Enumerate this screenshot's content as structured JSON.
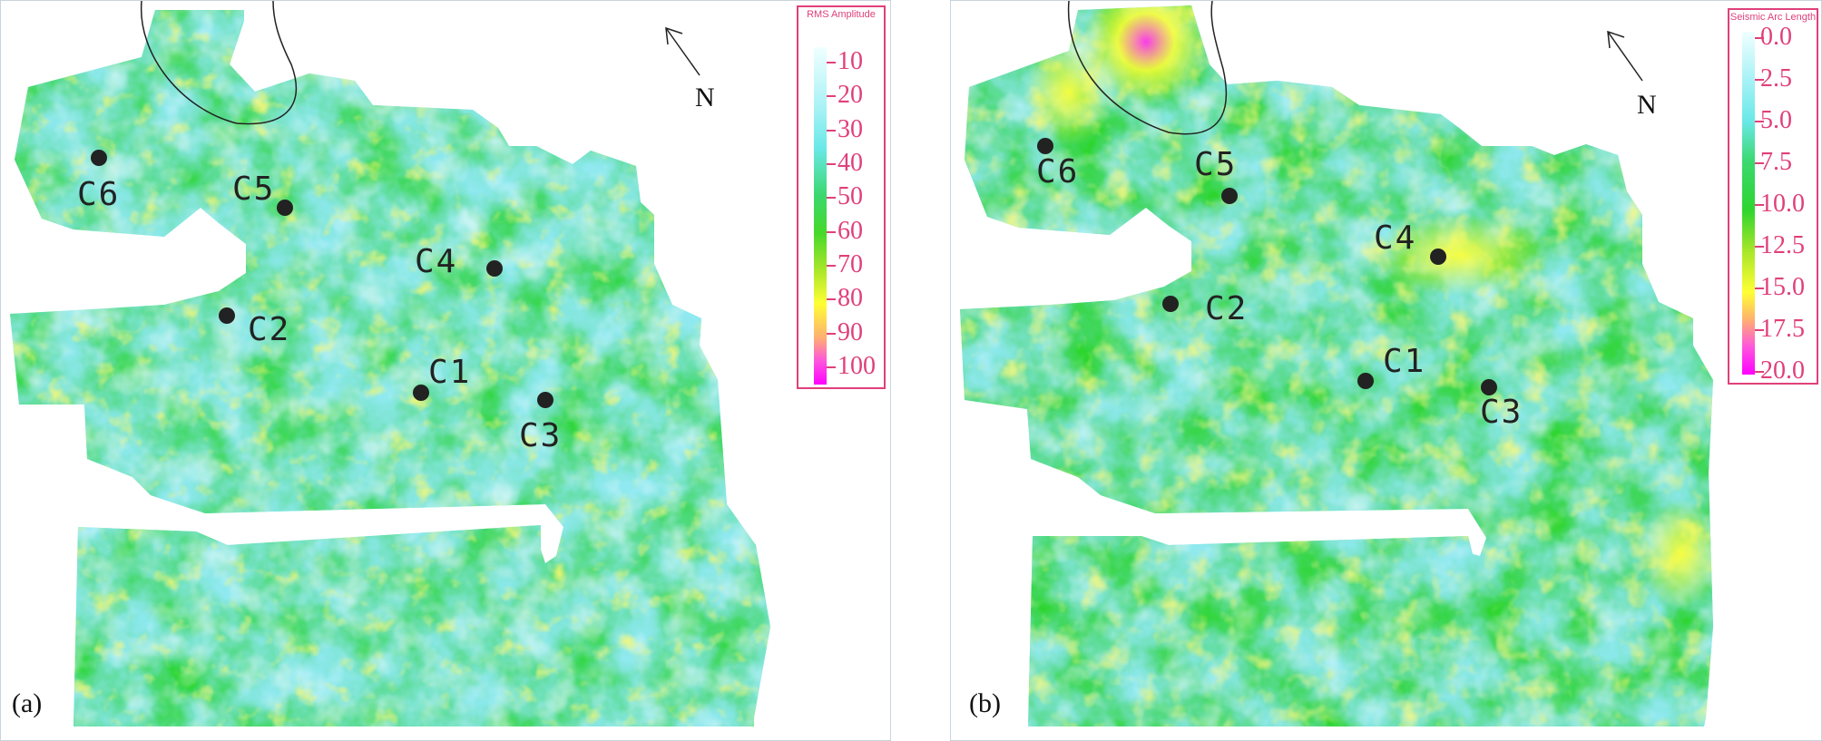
{
  "panels": [
    {
      "label": "(a)",
      "north_label": "N",
      "legend": {
        "title": "RMS Amplitude",
        "ticks": [
          "10",
          "20",
          "30",
          "40",
          "50",
          "60",
          "70",
          "80",
          "90",
          "100"
        ]
      },
      "wells": [
        "C6",
        "C5",
        "C4",
        "C2",
        "C1",
        "C3"
      ]
    },
    {
      "label": "(b)",
      "north_label": "N",
      "legend": {
        "title": "Seismic Arc Length",
        "ticks": [
          "0.0",
          "2.5",
          "5.0",
          "7.5",
          "10.0",
          "12.5",
          "15.0",
          "17.5",
          "20.0"
        ]
      },
      "wells": [
        "C6",
        "C5",
        "C4",
        "C2",
        "C1",
        "C3"
      ]
    }
  ],
  "colors": {
    "scale": [
      "#e8ffff",
      "#9ef1f4",
      "#5fe6a8",
      "#2fd52f",
      "#9be22a",
      "#ffff33",
      "#ff9ad0",
      "#ff00ff"
    ],
    "legend_text": "#e0407a",
    "well_dot": "#222222"
  }
}
